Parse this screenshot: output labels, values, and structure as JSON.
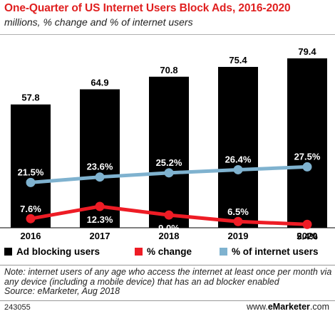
{
  "header": {
    "title": "One-Quarter of US Internet Users Block Ads, 2016-2020",
    "subtitle": "millions, % change and % of internet users"
  },
  "chart_data": {
    "type": "bar",
    "title": "One-Quarter of US Internet Users Block Ads, 2016-2020",
    "subtitle": "millions, % change and % of internet users",
    "categories": [
      "2016",
      "2017",
      "2018",
      "2019",
      "2020"
    ],
    "series": [
      {
        "name": "Ad blocking users",
        "type": "bar",
        "color": "#000000",
        "values": [
          57.8,
          64.9,
          70.8,
          75.4,
          79.4
        ],
        "labels": [
          "57.8",
          "64.9",
          "70.8",
          "75.4",
          "79.4"
        ]
      },
      {
        "name": "% change",
        "type": "line",
        "color": "#ee1c25",
        "values": [
          7.6,
          12.3,
          9.0,
          6.5,
          5.4
        ],
        "labels": [
          "7.6%",
          "12.3%",
          "9.0%",
          "6.5%",
          "5.4%"
        ]
      },
      {
        "name": "% of internet users",
        "type": "line",
        "color": "#7fb2cf",
        "values": [
          21.5,
          23.6,
          25.2,
          26.4,
          27.5
        ],
        "labels": [
          "21.5%",
          "23.6%",
          "25.2%",
          "26.4%",
          "27.5%"
        ]
      }
    ],
    "legend_position": "bottom",
    "grid": false
  },
  "footer": {
    "note": "Note: internet users of any age who access the internet at least once per month via any device (including a mobile device) that has an ad blocker enabled",
    "source": "Source: eMarketer, Aug 2018",
    "chart_id": "243055",
    "brand_prefix": "www.",
    "brand_name": "eMarketer",
    "brand_suffix": ".com"
  }
}
